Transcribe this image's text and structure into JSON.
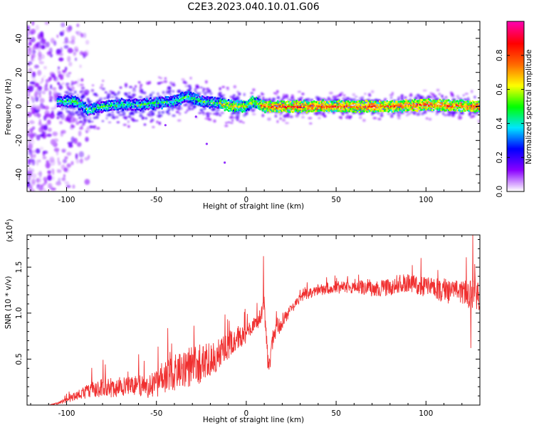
{
  "title": "C2E3.2023.040.10.01.G06",
  "chart_data": [
    {
      "type": "heatmap",
      "xlabel": "Height of straight line (km)",
      "ylabel": "Frequency (Hz)",
      "xlim": [
        -122,
        130
      ],
      "ylim": [
        -50,
        50
      ],
      "xticks": [
        -100,
        -50,
        0,
        50,
        100
      ],
      "yticks": [
        -40,
        -20,
        0,
        20,
        40
      ],
      "colorbar": {
        "label": "Normalized spectral amplitude",
        "range": [
          0,
          1
        ],
        "ticks": [
          "0.0",
          "0.2",
          "0.4",
          "0.6",
          "0.8"
        ],
        "colormap": [
          "#ffffff",
          "#8a00ff",
          "#0000ff",
          "#00e5ff",
          "#00ff00",
          "#ffff00",
          "#ff6a00",
          "#ff0000",
          "#ff00aa"
        ]
      },
      "ridge": [
        {
          "x": -105,
          "y": 3
        },
        {
          "x": -95,
          "y": 3
        },
        {
          "x": -88,
          "y": -2
        },
        {
          "x": -80,
          "y": 0
        },
        {
          "x": -70,
          "y": 1
        },
        {
          "x": -60,
          "y": 1
        },
        {
          "x": -50,
          "y": 2
        },
        {
          "x": -40,
          "y": 3
        },
        {
          "x": -33,
          "y": 6
        },
        {
          "x": -25,
          "y": 3
        },
        {
          "x": -15,
          "y": 2
        },
        {
          "x": -8,
          "y": 0
        },
        {
          "x": 0,
          "y": 0
        },
        {
          "x": 4,
          "y": 3
        },
        {
          "x": 10,
          "y": 0
        },
        {
          "x": 30,
          "y": 0
        },
        {
          "x": 60,
          "y": 0
        },
        {
          "x": 80,
          "y": 0
        },
        {
          "x": 100,
          "y": 1
        },
        {
          "x": 130,
          "y": 0
        }
      ]
    },
    {
      "type": "line",
      "xlabel": "Height of straight line (km)",
      "ylabel": "SNR (10 * v/v)",
      "yscale_label": "(x10",
      "yscale_exp": "4",
      "yscale_close": ")",
      "xlim": [
        -122,
        130
      ],
      "ylim": [
        0,
        18500
      ],
      "xticks": [
        -100,
        -50,
        0,
        50,
        100
      ],
      "yticks": [
        5000,
        10000,
        15000
      ],
      "ytick_labels": [
        "0.5",
        "1.0",
        "1.5"
      ],
      "color": "#f03030",
      "series": [
        {
          "x": [
            -122,
            -110,
            -105,
            -100,
            -95,
            -90,
            -85,
            -80,
            -75,
            -70,
            -65,
            -60,
            -55,
            -50,
            -45,
            -40,
            -35,
            -30,
            -28,
            -25,
            -20,
            -15,
            -10,
            -5,
            0,
            3,
            6,
            8,
            9,
            10,
            11,
            12,
            13,
            15,
            18,
            20,
            25,
            30,
            35,
            40,
            45,
            50,
            55,
            60,
            65,
            70,
            75,
            80,
            85,
            90,
            95,
            100,
            105,
            110,
            115,
            120,
            125,
            130
          ],
          "y": [
            0,
            0,
            200,
            500,
            1000,
            1400,
            1700,
            2000,
            1800,
            2000,
            2100,
            2000,
            2100,
            2300,
            2900,
            3400,
            4000,
            4300,
            4500,
            4500,
            5000,
            5500,
            6500,
            7300,
            7800,
            8400,
            8900,
            9500,
            10500,
            11200,
            7500,
            5000,
            4200,
            7500,
            8500,
            9000,
            10500,
            11700,
            12100,
            12500,
            12700,
            12800,
            12900,
            12800,
            12800,
            12600,
            12700,
            12800,
            13200,
            13300,
            13100,
            12800,
            12900,
            12200,
            12300,
            12100,
            12000,
            12000
          ],
          "noise": [
            0,
            0,
            200,
            500,
            800,
            1200,
            1500,
            1800,
            1600,
            1800,
            1900,
            2000,
            2200,
            2500,
            3000,
            3500,
            3500,
            3800,
            3800,
            3500,
            3000,
            2800,
            2800,
            2200,
            1800,
            1500,
            1400,
            1300,
            1800,
            2200,
            1800,
            1500,
            1500,
            1800,
            1500,
            1300,
            1000,
            900,
            900,
            1000,
            1100,
            1200,
            1200,
            1300,
            1300,
            1400,
            1500,
            1500,
            1600,
            1700,
            1800,
            1900,
            2000,
            2100,
            2200,
            2400,
            2600,
            2800
          ],
          "peaks": [
            {
              "x": 9.5,
              "y": 16200
            },
            {
              "x": 126,
              "y": 18500
            },
            {
              "x": 125,
              "y": 6200
            },
            {
              "x": 12,
              "y": 4000
            }
          ]
        }
      ]
    }
  ]
}
